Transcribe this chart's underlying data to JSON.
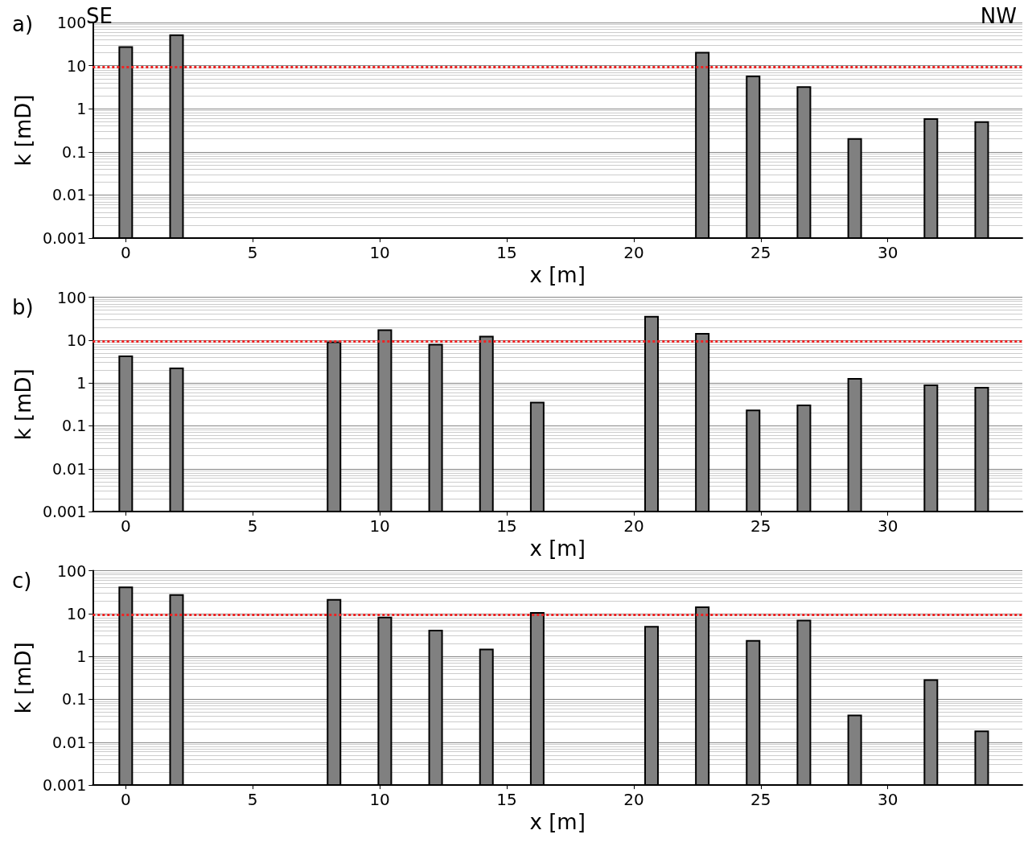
{
  "chart_data": [
    {
      "type": "bar",
      "title": "a)",
      "xlabel": "x [m]",
      "ylabel": "k [mD]",
      "annotations": [
        "SE",
        "NW"
      ],
      "x": [
        0,
        2,
        22.7,
        24.7,
        26.7,
        28.7,
        31.7,
        33.7
      ],
      "values": [
        27,
        51,
        20,
        5.6,
        3.2,
        0.2,
        0.58,
        0.49
      ],
      "color": "#808080",
      "log": "y",
      "grid": "y",
      "xlim": [
        -1.3,
        35.3
      ],
      "xticks": [
        0,
        5,
        10,
        15,
        20,
        25,
        30
      ],
      "ylim": [
        0.001,
        100
      ],
      "yticks": [
        0.001,
        0.01,
        0.1,
        1,
        10,
        100
      ],
      "ref_lines": [
        {
          "axis": "y",
          "value": 9.5,
          "color": "#ee2222",
          "line_style": "dotted"
        }
      ]
    },
    {
      "type": "bar",
      "title": "b)",
      "xlabel": "x [m]",
      "ylabel": "k [mD]",
      "x": [
        0,
        2,
        8.2,
        10.2,
        12.2,
        14.2,
        16.2,
        20.7,
        22.7,
        24.7,
        26.7,
        28.7,
        31.7,
        33.7
      ],
      "values": [
        4.2,
        2.2,
        8.9,
        17,
        7.8,
        12,
        0.35,
        35,
        14,
        0.23,
        0.3,
        1.25,
        0.88,
        0.78
      ],
      "color": "#808080",
      "log": "y",
      "grid": "y",
      "xlim": [
        -1.3,
        35.3
      ],
      "xticks": [
        0,
        5,
        10,
        15,
        20,
        25,
        30
      ],
      "ylim": [
        0.001,
        100
      ],
      "yticks": [
        0.001,
        0.01,
        0.1,
        1,
        10,
        100
      ],
      "ref_lines": [
        {
          "axis": "y",
          "value": 9.5,
          "color": "#ee2222",
          "line_style": "dotted"
        }
      ]
    },
    {
      "type": "bar",
      "title": "c)",
      "xlabel": "x [m]",
      "ylabel": "k [mD]",
      "x": [
        0,
        2,
        8.2,
        10.2,
        12.2,
        14.2,
        16.2,
        20.7,
        22.7,
        24.7,
        26.7,
        28.7,
        31.7,
        33.7
      ],
      "values": [
        41,
        27,
        21,
        8.1,
        4,
        1.45,
        10.4,
        4.9,
        14,
        2.3,
        6.9,
        0.042,
        0.28,
        0.018
      ],
      "color": "#808080",
      "log": "y",
      "grid": "y",
      "xlim": [
        -1.3,
        35.3
      ],
      "xticks": [
        0,
        5,
        10,
        15,
        20,
        25,
        30
      ],
      "ylim": [
        0.001,
        100
      ],
      "yticks": [
        0.001,
        0.01,
        0.1,
        1,
        10,
        100
      ],
      "ref_lines": [
        {
          "axis": "y",
          "value": 9.5,
          "color": "#ee2222",
          "line_style": "dotted"
        }
      ]
    }
  ]
}
